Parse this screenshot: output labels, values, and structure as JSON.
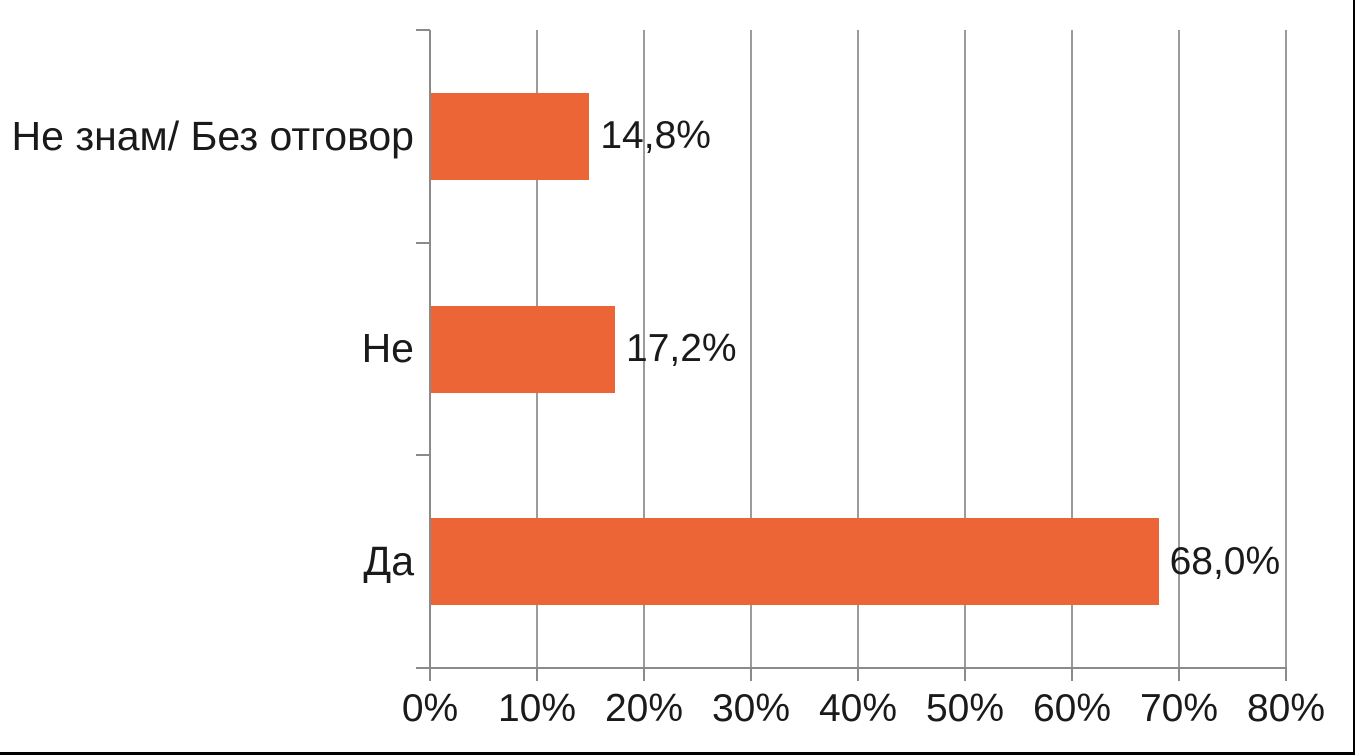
{
  "chart_data": {
    "type": "bar",
    "orientation": "horizontal",
    "title": "",
    "categories": [
      "Не знам/ Без отговор",
      "Не",
      "Да"
    ],
    "values": [
      14.8,
      17.2,
      68.0
    ],
    "data_labels": [
      "14,8%",
      "17,2%",
      "68,0%"
    ],
    "xlabel": "",
    "ylabel": "",
    "xlim": [
      0,
      80
    ],
    "x_ticks": [
      "0%",
      "10%",
      "20%",
      "30%",
      "40%",
      "50%",
      "60%",
      "70%",
      "80%"
    ],
    "grid": true,
    "legend": false,
    "bar_color": "#EB6536",
    "gridline_color": "#9B9B9B",
    "axis_color": "#8A8A8A",
    "text_color": "#1A1A1A",
    "background_color": "#FFFFFF"
  }
}
